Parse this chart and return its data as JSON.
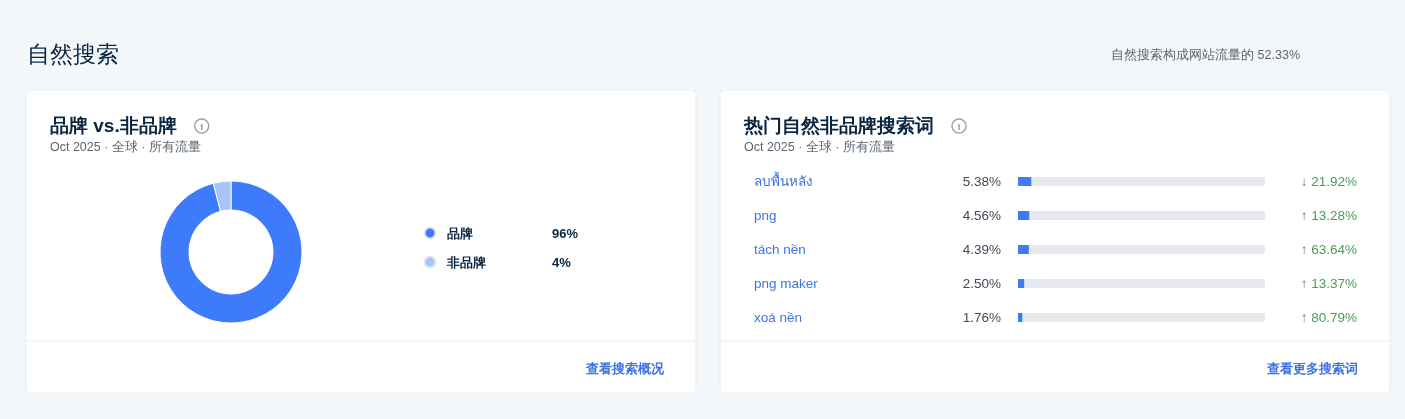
{
  "chart_data": [
    {
      "type": "donut",
      "title": "品牌 vs.非品牌",
      "subtitle": "Oct 2025 · 全球 · 所有流量",
      "categories": [
        "品牌",
        "非品牌"
      ],
      "values": [
        96,
        4
      ],
      "colors": [
        "#3e7bfa",
        "#a8c5fb"
      ],
      "value_labels": [
        "96%",
        "4%"
      ],
      "legend": "right",
      "annotations": [
        "自然搜索",
        "自然搜索构成网站流量的 52.33%",
        "查看搜索概况"
      ]
    },
    {
      "type": "bar",
      "orientation": "horizontal",
      "title": "热门自然非品牌搜索词",
      "subtitle": "Oct 2025 · 全球 · 所有流量",
      "categories": [
        "ลบพื้นหลัง",
        "png",
        "tách nền",
        "png maker",
        "xoá nền"
      ],
      "xlim": [
        0,
        100
      ],
      "series": [
        {
          "color": "#3e7bfa",
          "values": [
            5.38,
            4.56,
            4.39,
            2.5,
            1.76
          ],
          "value_labels": [
            "5.38%",
            "4.56%",
            "4.39%",
            "2.50%",
            "1.76%"
          ]
        }
      ],
      "annotations": [
        "查看更多搜索词",
        "↓ 21.92%",
        "↑ 13.28%",
        "↑ 63.64%",
        "↑ 13.37%",
        "↑ 80.79%"
      ]
    }
  ]
}
